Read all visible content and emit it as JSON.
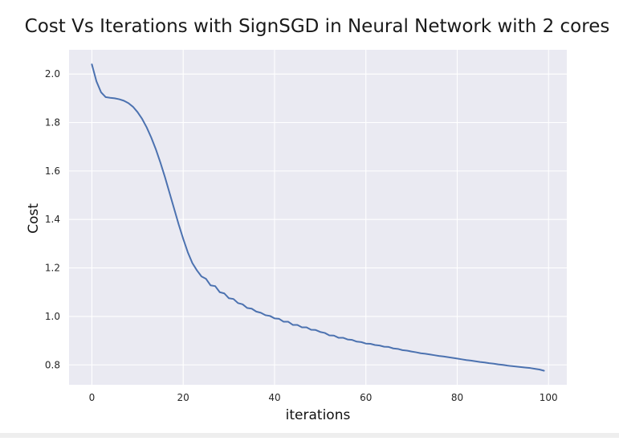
{
  "chart_data": {
    "type": "line",
    "title": "Cost Vs Iterations with SignSGD in Neural Network with 2 cores",
    "xlabel": "iterations",
    "ylabel": "Cost",
    "xlim": [
      -5,
      104
    ],
    "ylim": [
      0.718,
      2.1
    ],
    "grid": true,
    "style": "seaborn-darkgrid",
    "x_ticks": [
      0,
      20,
      40,
      60,
      80,
      100
    ],
    "y_ticks": [
      0.8,
      1.0,
      1.2,
      1.4,
      1.6,
      1.8,
      2.0
    ],
    "x_tick_labels": [
      "0",
      "20",
      "40",
      "60",
      "80",
      "100"
    ],
    "y_tick_labels": [
      "0.8",
      "1.0",
      "1.2",
      "1.4",
      "1.6",
      "1.8",
      "2.0"
    ],
    "series": [
      {
        "name": "Cost",
        "color": "#4c72b0",
        "x": [
          0,
          1,
          2,
          3,
          4,
          5,
          6,
          7,
          8,
          9,
          10,
          11,
          12,
          13,
          14,
          15,
          16,
          17,
          18,
          19,
          20,
          21,
          22,
          23,
          24,
          25,
          26,
          27,
          28,
          29,
          30,
          31,
          32,
          33,
          34,
          35,
          36,
          37,
          38,
          39,
          40,
          41,
          42,
          43,
          44,
          45,
          46,
          47,
          48,
          49,
          50,
          51,
          52,
          53,
          54,
          55,
          56,
          57,
          58,
          59,
          60,
          61,
          62,
          63,
          64,
          65,
          66,
          67,
          68,
          69,
          70,
          71,
          72,
          73,
          74,
          75,
          76,
          77,
          78,
          79,
          80,
          81,
          82,
          83,
          84,
          85,
          86,
          87,
          88,
          89,
          90,
          91,
          92,
          93,
          94,
          95,
          96,
          97,
          98,
          99
        ],
        "values": [
          2.04,
          1.97,
          1.925,
          1.905,
          1.902,
          1.9,
          1.896,
          1.89,
          1.88,
          1.865,
          1.843,
          1.815,
          1.78,
          1.738,
          1.69,
          1.635,
          1.575,
          1.51,
          1.445,
          1.38,
          1.32,
          1.265,
          1.22,
          1.19,
          1.165,
          1.155,
          1.128,
          1.125,
          1.1,
          1.095,
          1.075,
          1.072,
          1.055,
          1.05,
          1.035,
          1.032,
          1.02,
          1.015,
          1.005,
          1.002,
          0.992,
          0.99,
          0.978,
          0.978,
          0.965,
          0.965,
          0.955,
          0.955,
          0.945,
          0.944,
          0.936,
          0.932,
          0.922,
          0.921,
          0.912,
          0.912,
          0.905,
          0.903,
          0.896,
          0.894,
          0.888,
          0.887,
          0.882,
          0.88,
          0.875,
          0.874,
          0.868,
          0.866,
          0.861,
          0.859,
          0.855,
          0.852,
          0.848,
          0.846,
          0.843,
          0.84,
          0.837,
          0.835,
          0.832,
          0.829,
          0.826,
          0.823,
          0.82,
          0.818,
          0.815,
          0.812,
          0.81,
          0.807,
          0.805,
          0.802,
          0.8,
          0.797,
          0.795,
          0.793,
          0.791,
          0.789,
          0.787,
          0.784,
          0.781,
          0.776
        ]
      }
    ]
  }
}
